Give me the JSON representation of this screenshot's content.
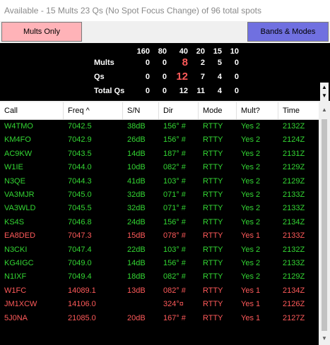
{
  "title": "Available - 15 Mults 23 Qs  (No Spot Focus Change) of 96 total spots",
  "buttons": {
    "mults_only": "Mults Only",
    "bands_modes": "Bands & Modes"
  },
  "stats": {
    "bands": [
      "160",
      "80",
      "40",
      "20",
      "15",
      "10"
    ],
    "rows": [
      {
        "label": "Mults",
        "values": [
          "0",
          "0",
          "8",
          "2",
          "5",
          "0"
        ]
      },
      {
        "label": "Qs",
        "values": [
          "0",
          "0",
          "12",
          "7",
          "4",
          "0"
        ]
      },
      {
        "label": "Total Qs",
        "values": [
          "0",
          "0",
          "12",
          "11",
          "4",
          "0"
        ]
      }
    ]
  },
  "table": {
    "columns": [
      "Call",
      "Freq ^",
      "S/N",
      "Dir",
      "Mode",
      "Mult?",
      "Time"
    ],
    "rows": [
      {
        "call": "W4TMO",
        "freq": "7042.5",
        "sn": "38dB",
        "dir": "156° #",
        "mode": "RTTY",
        "mult": "Yes 2",
        "time": "2132Z",
        "color": "#33d633"
      },
      {
        "call": "KM4FO",
        "freq": "7042.9",
        "sn": "26dB",
        "dir": "156° #",
        "mode": "RTTY",
        "mult": "Yes 2",
        "time": "2124Z",
        "color": "#33d633"
      },
      {
        "call": "AC9KW",
        "freq": "7043.5",
        "sn": "14dB",
        "dir": "187° #",
        "mode": "RTTY",
        "mult": "Yes 2",
        "time": "2131Z",
        "color": "#33d633"
      },
      {
        "call": "W1IE",
        "freq": "7044.0",
        "sn": "10dB",
        "dir": "082° #",
        "mode": "RTTY",
        "mult": "Yes 2",
        "time": "2129Z",
        "color": "#33d633"
      },
      {
        "call": "N3QE",
        "freq": "7044.3",
        "sn": "41dB",
        "dir": "103° #",
        "mode": "RTTY",
        "mult": "Yes 2",
        "time": "2129Z",
        "color": "#33d633"
      },
      {
        "call": "VA3MJR",
        "freq": "7045.0",
        "sn": "32dB",
        "dir": "071° #",
        "mode": "RTTY",
        "mult": "Yes 2",
        "time": "2133Z",
        "color": "#33d633"
      },
      {
        "call": "VA3WLD",
        "freq": "7045.5",
        "sn": "32dB",
        "dir": "071° #",
        "mode": "RTTY",
        "mult": "Yes 2",
        "time": "2133Z",
        "color": "#33d633"
      },
      {
        "call": "KS4S",
        "freq": "7046.8",
        "sn": "24dB",
        "dir": "156° #",
        "mode": "RTTY",
        "mult": "Yes 2",
        "time": "2134Z",
        "color": "#33d633"
      },
      {
        "call": "EA8DED",
        "freq": "7047.3",
        "sn": "15dB",
        "dir": "078° #",
        "mode": "RTTY",
        "mult": "Yes 1",
        "time": "2133Z",
        "color": "#ff5a5a"
      },
      {
        "call": "N3CKI",
        "freq": "7047.4",
        "sn": "22dB",
        "dir": "103° #",
        "mode": "RTTY",
        "mult": "Yes 2",
        "time": "2132Z",
        "color": "#33d633"
      },
      {
        "call": "KG4IGC",
        "freq": "7049.0",
        "sn": "14dB",
        "dir": "156° #",
        "mode": "RTTY",
        "mult": "Yes 2",
        "time": "2133Z",
        "color": "#33d633"
      },
      {
        "call": "N1IXF",
        "freq": "7049.4",
        "sn": "18dB",
        "dir": "082° #",
        "mode": "RTTY",
        "mult": "Yes 2",
        "time": "2129Z",
        "color": "#33d633"
      },
      {
        "call": "W1FC",
        "freq": "14089.1",
        "sn": "13dB",
        "dir": "082° #",
        "mode": "RTTY",
        "mult": "Yes 1",
        "time": "2134Z",
        "color": "#ff5a5a"
      },
      {
        "call": "JM1XCW",
        "freq": "14106.0",
        "sn": "",
        "dir": "324°¤",
        "mode": "RTTY",
        "mult": "Yes 1",
        "time": "2126Z",
        "color": "#ff5a5a"
      },
      {
        "call": "5J0NA",
        "freq": "21085.0",
        "sn": "20dB",
        "dir": "167° #",
        "mode": "RTTY",
        "mult": "Yes 1",
        "time": "2127Z",
        "color": "#ff5a5a"
      }
    ]
  }
}
